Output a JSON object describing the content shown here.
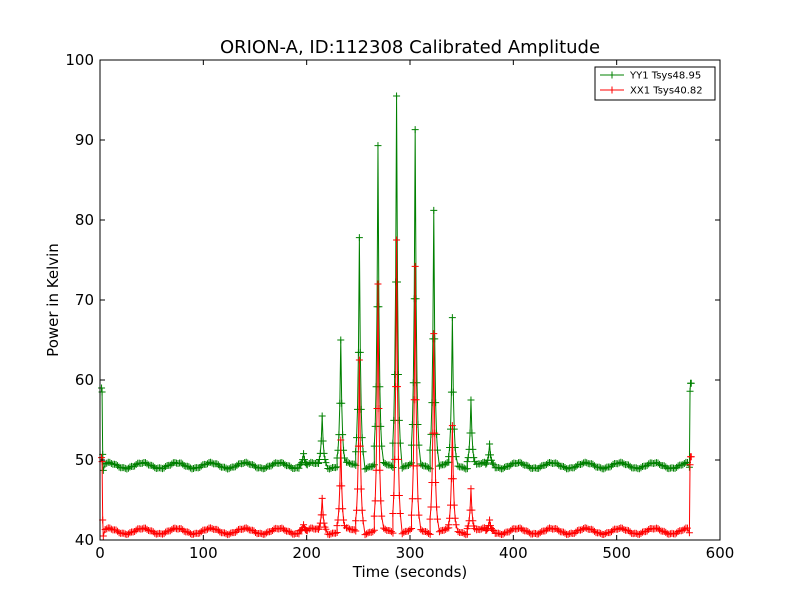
{
  "chart_data": {
    "type": "line",
    "title": "ORION-A, ID:112308 Calibrated Amplitude",
    "xlabel": "Time (seconds)",
    "ylabel": "Power in Kelvin",
    "xlim": [
      0,
      600
    ],
    "ylim": [
      40,
      100
    ],
    "xticks": [
      "0",
      "100",
      "200",
      "300",
      "400",
      "500",
      "600"
    ],
    "yticks": [
      "40",
      "50",
      "60",
      "70",
      "80",
      "90",
      "100"
    ],
    "grid": false,
    "legend_position": "top-right",
    "marker": "+",
    "series": [
      {
        "name": "YY1 Tsys48.95",
        "color": "#008000",
        "baseline": 49.3,
        "start_x": 2,
        "start_y": 59,
        "end_x": 571,
        "end_y": 59.6,
        "peaks": [
          {
            "x": 197,
            "y": 50.8
          },
          {
            "x": 215,
            "y": 55.5
          },
          {
            "x": 233,
            "y": 65
          },
          {
            "x": 251,
            "y": 77.8
          },
          {
            "x": 269,
            "y": 89.3
          },
          {
            "x": 287,
            "y": 95.5
          },
          {
            "x": 305,
            "y": 91.3
          },
          {
            "x": 323,
            "y": 81.2
          },
          {
            "x": 341,
            "y": 67.8
          },
          {
            "x": 359,
            "y": 57.5
          },
          {
            "x": 377,
            "y": 52
          }
        ]
      },
      {
        "name": "XX1 Tsys40.82",
        "color": "#ff0000",
        "baseline": 41.1,
        "start_x": 2,
        "start_y": 50.3,
        "end_x": 571,
        "end_y": 50.4,
        "peaks": [
          {
            "x": 197,
            "y": 41.9
          },
          {
            "x": 215,
            "y": 45.2
          },
          {
            "x": 233,
            "y": 52.5
          },
          {
            "x": 251,
            "y": 62.5
          },
          {
            "x": 269,
            "y": 72
          },
          {
            "x": 287,
            "y": 77.5
          },
          {
            "x": 305,
            "y": 74.2
          },
          {
            "x": 323,
            "y": 65.8
          },
          {
            "x": 341,
            "y": 54.3
          },
          {
            "x": 359,
            "y": 46.4
          },
          {
            "x": 377,
            "y": 42.5
          }
        ]
      }
    ]
  }
}
